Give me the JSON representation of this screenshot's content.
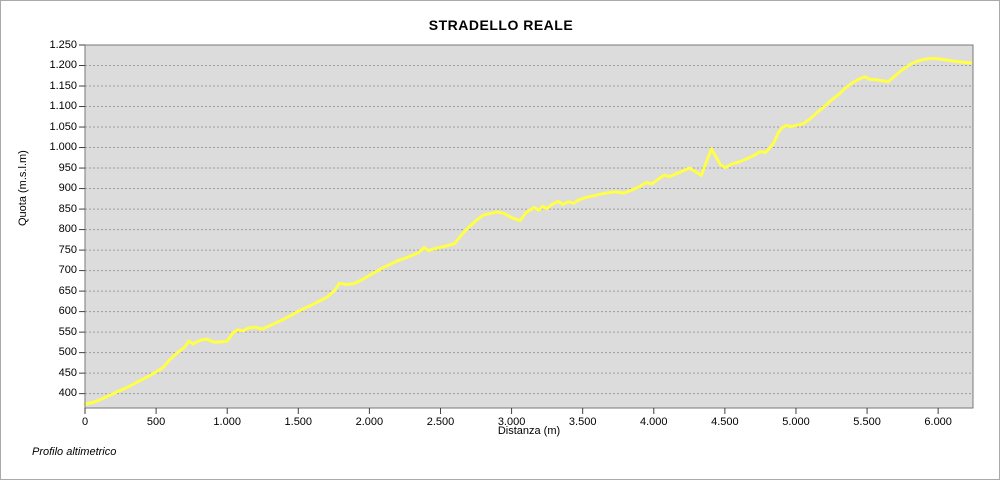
{
  "page": {
    "footer": "Profilo altimetrico"
  },
  "chart_data": {
    "type": "line",
    "title": "STRADELLO REALE",
    "xlabel": "Distanza (m)",
    "ylabel": "Quota (m.s.l.m)",
    "footer_note": "Profilo altimetrico",
    "legend": "none",
    "grid": "horizontal dotted every 50 m",
    "xlim": [
      0,
      6245
    ],
    "ylim": [
      365,
      1250
    ],
    "colors": {
      "plot_background": "#dcdcdc",
      "line": "#ffff47",
      "gridline": "#9c9c9c",
      "axis": "#7a7a7a",
      "text": "#000000",
      "frame": "#a9a9a9"
    },
    "x_ticks": {
      "values": [
        0,
        500,
        1000,
        1500,
        2000,
        2500,
        3000,
        3500,
        4000,
        4500,
        5000,
        5500,
        6000
      ],
      "labels": [
        "0",
        "500",
        "1.000",
        "1.500",
        "2.000",
        "2.500",
        "3.000",
        "3.500",
        "4.000",
        "4.500",
        "5.000",
        "5.500",
        "6.000"
      ]
    },
    "y_ticks": {
      "values": [
        400,
        450,
        500,
        550,
        600,
        650,
        700,
        750,
        800,
        850,
        900,
        950,
        1000,
        1050,
        1100,
        1150,
        1200,
        1250
      ],
      "labels": [
        "400",
        "450",
        "500",
        "550",
        "600",
        "650",
        "700",
        "750",
        "800",
        "850",
        "900",
        "950",
        "1.000",
        "1.050",
        "1.100",
        "1.150",
        "1.200",
        "1.250"
      ]
    },
    "series": [
      {
        "name": "Quota",
        "x": [
          0,
          50,
          100,
          150,
          200,
          250,
          300,
          350,
          400,
          450,
          500,
          550,
          600,
          650,
          700,
          730,
          760,
          790,
          820,
          860,
          900,
          950,
          1000,
          1040,
          1075,
          1110,
          1150,
          1200,
          1245,
          1300,
          1350,
          1400,
          1450,
          1500,
          1550,
          1600,
          1650,
          1700,
          1750,
          1790,
          1840,
          1890,
          1950,
          2000,
          2050,
          2100,
          2150,
          2200,
          2250,
          2300,
          2350,
          2385,
          2415,
          2450,
          2500,
          2550,
          2600,
          2650,
          2700,
          2750,
          2800,
          2860,
          2900,
          2950,
          3000,
          3060,
          3100,
          3160,
          3190,
          3220,
          3250,
          3280,
          3330,
          3360,
          3400,
          3440,
          3470,
          3520,
          3570,
          3620,
          3680,
          3730,
          3790,
          3850,
          3900,
          3950,
          3985,
          4040,
          4075,
          4110,
          4150,
          4200,
          4250,
          4300,
          4335,
          4365,
          4405,
          4435,
          4470,
          4500,
          4550,
          4600,
          4650,
          4700,
          4750,
          4785,
          4815,
          4845,
          4875,
          4905,
          4935,
          4965,
          5000,
          5050,
          5100,
          5150,
          5200,
          5250,
          5300,
          5350,
          5400,
          5450,
          5485,
          5520,
          5560,
          5600,
          5650,
          5700,
          5750,
          5800,
          5850,
          5900,
          5950,
          6000,
          6050,
          6100,
          6150,
          6200,
          6230
        ],
        "y": [
          375,
          378,
          384,
          392,
          400,
          408,
          416,
          425,
          434,
          443,
          453,
          464,
          484,
          500,
          513,
          528,
          521,
          527,
          531,
          533,
          526,
          526,
          528,
          548,
          556,
          553,
          560,
          562,
          557,
          566,
          574,
          582,
          591,
          601,
          609,
          617,
          626,
          635,
          649,
          669,
          666,
          668,
          678,
          688,
          698,
          708,
          716,
          724,
          730,
          737,
          745,
          756,
          749,
          753,
          757,
          761,
          766,
          788,
          806,
          822,
          835,
          840,
          843,
          839,
          829,
          822,
          841,
          854,
          847,
          857,
          851,
          861,
          869,
          861,
          868,
          864,
          872,
          878,
          882,
          886,
          890,
          892,
          889,
          897,
          905,
          915,
          911,
          925,
          933,
          929,
          935,
          942,
          950,
          940,
          932,
          960,
          997,
          979,
          958,
          951,
          960,
          965,
          972,
          980,
          990,
          988,
          999,
          1012,
          1036,
          1049,
          1054,
          1051,
          1054,
          1058,
          1070,
          1086,
          1100,
          1116,
          1129,
          1146,
          1158,
          1168,
          1173,
          1166,
          1166,
          1163,
          1161,
          1176,
          1190,
          1202,
          1210,
          1215,
          1217,
          1216,
          1214,
          1211,
          1209,
          1207,
          1206
        ]
      }
    ]
  }
}
